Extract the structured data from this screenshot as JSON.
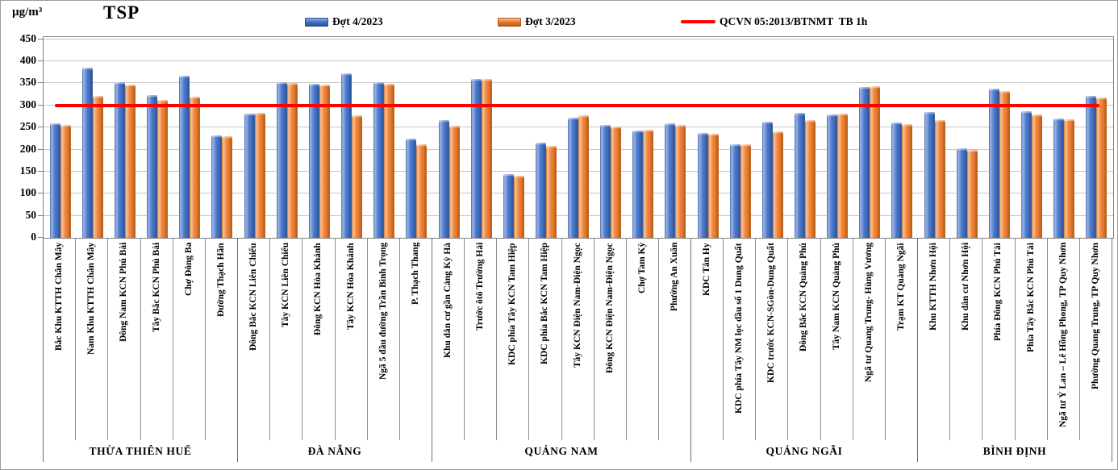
{
  "chart_data": {
    "type": "bar",
    "title": "TSP",
    "ylabel": "µg/m³",
    "xlabel": "",
    "ylim": [
      0,
      450
    ],
    "yticks": [
      0,
      50,
      100,
      150,
      200,
      250,
      300,
      350,
      400,
      450
    ],
    "grid": true,
    "legend_position": "top",
    "series_names": [
      "Đợt 4/2023",
      "Đợt 3/2023"
    ],
    "series_colors": [
      "#4472C4",
      "#ED7D31"
    ],
    "reference_line": {
      "label": "QCVN 05:2013/BTNMT  TB 1h",
      "value": 300,
      "color": "#FF0000"
    },
    "groups": [
      {
        "name": "THỪA THIÊN HUẾ",
        "locations": [
          {
            "label": "Bắc Khu KTTH Chân Mây",
            "values": [
              260,
              255
            ]
          },
          {
            "label": "Nam Khu KTTH Chân Mây",
            "values": [
              385,
              322
            ]
          },
          {
            "label": "Đông Nam KCN Phú Bài",
            "values": [
              352,
              348
            ]
          },
          {
            "label": "Tây Bắc KCN Phú Bài",
            "values": [
              323,
              313
            ]
          },
          {
            "label": "Chợ Đông Ba",
            "values": [
              367,
              320
            ]
          },
          {
            "label": "Đường Thạch Hãn",
            "values": [
              233,
              231
            ]
          }
        ]
      },
      {
        "name": "ĐÀ NẴNG",
        "locations": [
          {
            "label": "Đông Bắc KCN Liên Chiểu",
            "values": [
              281,
              283
            ]
          },
          {
            "label": "Tây KCN Liên Chiểu",
            "values": [
              352,
              350
            ]
          },
          {
            "label": "Đông KCN Hòa Khánh",
            "values": [
              349,
              348
            ]
          },
          {
            "label": "Tây KCN Hòa Khánh",
            "values": [
              373,
              278
            ]
          },
          {
            "label": "Ngã 5 đầu đường Trần Bình Trọng",
            "values": [
              352,
              349
            ]
          },
          {
            "label": "P. Thạch Thang",
            "values": [
              225,
              212
            ]
          }
        ]
      },
      {
        "name": "QUẢNG NAM",
        "locations": [
          {
            "label": "Khu dân cư gần Cảng Kỳ Hà",
            "values": [
              266,
              254
            ]
          },
          {
            "label": "Trước ôtô Trường Hải",
            "values": [
              360,
              360
            ]
          },
          {
            "label": "KDC phía Tây KCN Tam Hiệp",
            "values": [
              144,
              141
            ]
          },
          {
            "label": "KDC phía Bắc KCN Tam Hiệp",
            "values": [
              215,
              209
            ]
          },
          {
            "label": "Tây KCN Điện Nam-Điện Ngọc",
            "values": [
              273,
              278
            ]
          },
          {
            "label": "Đông KCN Điện Nam-Điện Ngọc",
            "values": [
              255,
              253
            ]
          },
          {
            "label": "Chợ Tam Kỳ",
            "values": [
              243,
              245
            ]
          },
          {
            "label": "Phường An Xuân",
            "values": [
              260,
              256
            ]
          }
        ]
      },
      {
        "name": "QUẢNG NGÃI",
        "locations": [
          {
            "label": "KDC Tân Hy",
            "values": [
              238,
              235
            ]
          },
          {
            "label": "KDC phía Tây NM lọc dầu số 1 Dung Quất",
            "values": [
              212,
              212
            ]
          },
          {
            "label": "KDC trước KCN-SGòn-Dung Quất",
            "values": [
              263,
              242
            ]
          },
          {
            "label": "Đông Bắc KCN Quảng Phú",
            "values": [
              283,
              267
            ]
          },
          {
            "label": "Tây Nam KCN Quảng Phú",
            "values": [
              279,
              281
            ]
          },
          {
            "label": "Ngã tư Quang Trung- Hùng Vương",
            "values": [
              342,
              343
            ]
          },
          {
            "label": "Trạm KT Quảng Ngãi",
            "values": [
              261,
              258
            ]
          }
        ]
      },
      {
        "name": "BÌNH ĐỊNH",
        "locations": [
          {
            "label": "Khu KTTH Nhơn Hội",
            "values": [
              285,
              266
            ]
          },
          {
            "label": "Khu dân cư Nhơn Hội",
            "values": [
              202,
              200
            ]
          },
          {
            "label": "Phía Đông KCN Phú Tài",
            "values": [
              338,
              332
            ]
          },
          {
            "label": "Phía Tây Bắc KCN Phú Tài",
            "values": [
              287,
              279
            ]
          },
          {
            "label": "Ngã tư Ỷ Lan – Lê Hồng Phong, TP Quy Nhơn",
            "values": [
              270,
              269
            ]
          },
          {
            "label": "Phường Quang Trung, TP Quy Nhơn",
            "values": [
              321,
              318
            ]
          }
        ]
      }
    ]
  }
}
